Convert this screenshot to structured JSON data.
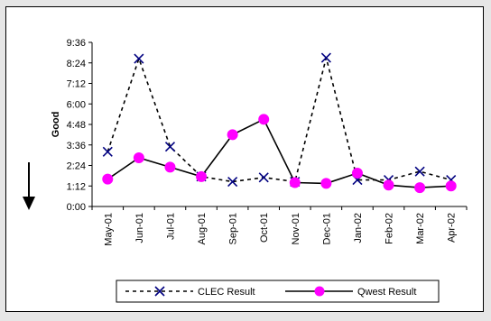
{
  "chart_data": {
    "type": "line",
    "categories": [
      "May-01",
      "Jun-01",
      "Jul-01",
      "Aug-01",
      "Sep-01",
      "Oct-01",
      "Nov-01",
      "Dec-01",
      "Jan-02",
      "Feb-02",
      "Mar-02",
      "Apr-02"
    ],
    "y_tick_labels": [
      "0:00",
      "1:12",
      "2:24",
      "3:36",
      "4:48",
      "6:00",
      "7:12",
      "8:24",
      "9:36"
    ],
    "y_unit": "hours (h:mm)",
    "ylim": [
      0,
      9.6
    ],
    "ylabel": "Good",
    "ylabel_arrow": "down",
    "grid": false,
    "legend_position": "bottom",
    "series": [
      {
        "name": "CLEC Result",
        "style": "dashed",
        "marker": "x",
        "color": "#000080",
        "line_color": "#000000",
        "values": [
          3.2,
          8.65,
          3.5,
          1.75,
          1.45,
          1.7,
          1.45,
          8.7,
          1.55,
          1.55,
          2.05,
          1.55
        ]
      },
      {
        "name": "Qwest Result",
        "style": "solid",
        "marker": "circle",
        "color": "#ff00ff",
        "line_color": "#000000",
        "values": [
          1.6,
          2.85,
          2.3,
          1.75,
          4.2,
          5.1,
          1.4,
          1.35,
          1.95,
          1.25,
          1.1,
          1.2
        ]
      }
    ]
  }
}
